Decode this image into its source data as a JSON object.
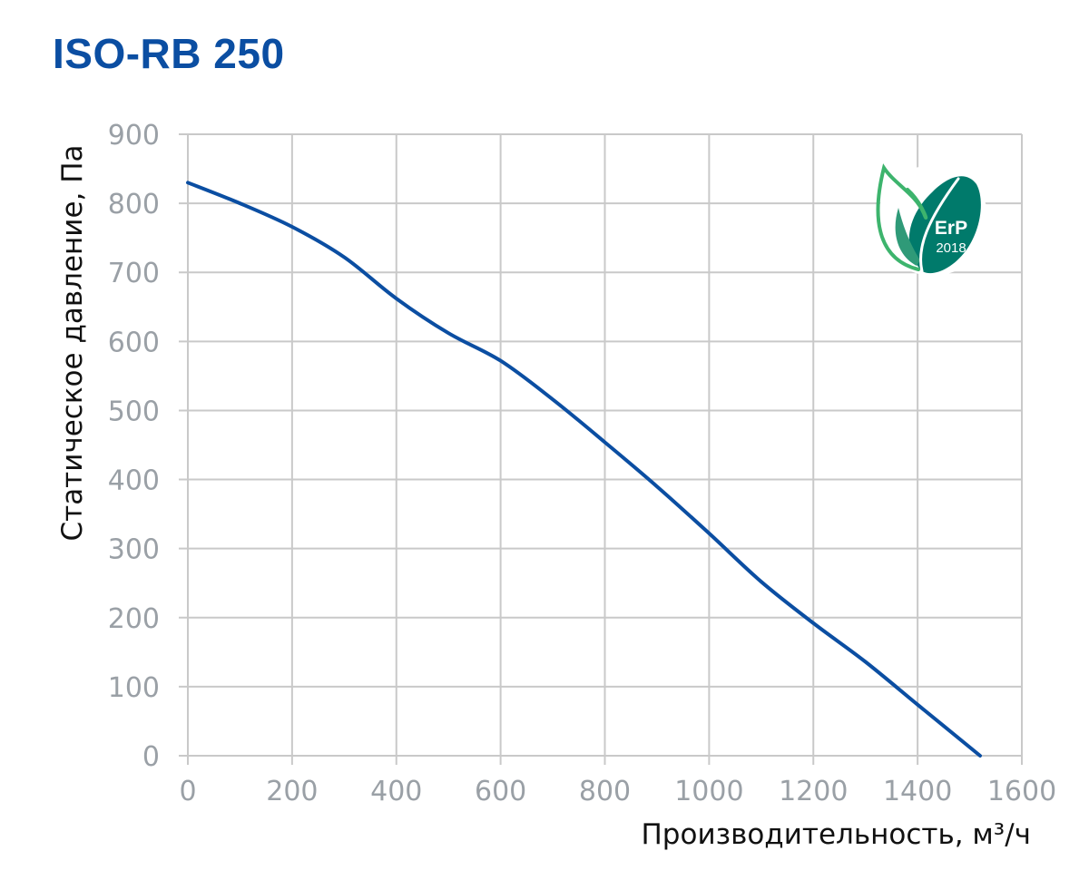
{
  "title": "ISO-RB 250",
  "badge": {
    "text": "ErP",
    "year": "2018",
    "colors": {
      "dark": "#00786a",
      "light": "#3db46d"
    },
    "icon": "leaf-icon"
  },
  "colors": {
    "title": "#0b4ea2",
    "line": "#0b4ea2",
    "grid": "#c9c9c9",
    "ticks": "#9aa0a6"
  },
  "chart_data": {
    "type": "line",
    "title": "ISO-RB 250",
    "xlabel": "Производительность, м³/ч",
    "ylabel": "Статическое давление, Па",
    "xlim": [
      0,
      1600
    ],
    "ylim": [
      0,
      900
    ],
    "xticks": [
      0,
      200,
      400,
      600,
      800,
      1000,
      1200,
      1400,
      1600
    ],
    "yticks": [
      0,
      100,
      200,
      300,
      400,
      500,
      600,
      700,
      800,
      900
    ],
    "grid": true,
    "series": [
      {
        "x": [
          0,
          100,
          200,
          300,
          400,
          500,
          600,
          700,
          800,
          900,
          1000,
          1100,
          1200,
          1300,
          1400,
          1520
        ],
        "y": [
          830,
          800,
          766,
          722,
          662,
          612,
          572,
          516,
          454,
          390,
          322,
          252,
          192,
          136,
          74,
          0
        ]
      }
    ]
  }
}
